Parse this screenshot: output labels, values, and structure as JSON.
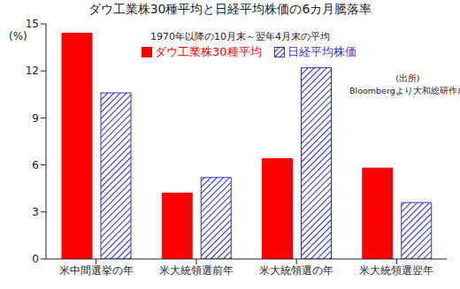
{
  "chart_data": {
    "type": "bar",
    "title": "ダウ工業株30種平均と日経平均株価の6カ月騰落率",
    "ylabel": "(%)",
    "annotations": [
      "1970年以降の10月末～翌年4月末の平均",
      "(出所)",
      "Bloombergより大和総研作成"
    ],
    "categories": [
      "米中間選挙の年",
      "米大統領選前年",
      "米大統領選の年",
      "米大統領選翌年"
    ],
    "series": [
      {
        "name": "ダウ工業株30種平均",
        "color": "#ff0000",
        "values": [
          14.4,
          4.2,
          6.4,
          5.8
        ]
      },
      {
        "name": "日経平均株価",
        "color": "#3333cc",
        "values": [
          10.6,
          5.2,
          12.2,
          3.6
        ]
      }
    ],
    "ylim": [
      0,
      15
    ],
    "yticks": [
      0,
      3,
      6,
      9,
      12,
      15
    ],
    "legend": "top",
    "grid": false
  }
}
